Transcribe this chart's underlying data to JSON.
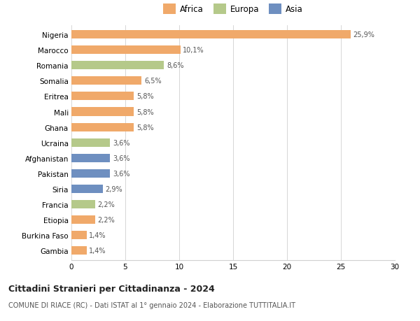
{
  "categories": [
    "Nigeria",
    "Marocco",
    "Romania",
    "Somalia",
    "Eritrea",
    "Mali",
    "Ghana",
    "Ucraina",
    "Afghanistan",
    "Pakistan",
    "Siria",
    "Francia",
    "Etiopia",
    "Burkina Faso",
    "Gambia"
  ],
  "values": [
    25.9,
    10.1,
    8.6,
    6.5,
    5.8,
    5.8,
    5.8,
    3.6,
    3.6,
    3.6,
    2.9,
    2.2,
    2.2,
    1.4,
    1.4
  ],
  "labels": [
    "25,9%",
    "10,1%",
    "8,6%",
    "6,5%",
    "5,8%",
    "5,8%",
    "5,8%",
    "3,6%",
    "3,6%",
    "3,6%",
    "2,9%",
    "2,2%",
    "2,2%",
    "1,4%",
    "1,4%"
  ],
  "continent": [
    "Africa",
    "Africa",
    "Europa",
    "Africa",
    "Africa",
    "Africa",
    "Africa",
    "Europa",
    "Asia",
    "Asia",
    "Asia",
    "Europa",
    "Africa",
    "Africa",
    "Africa"
  ],
  "colors": {
    "Africa": "#F0A96A",
    "Europa": "#B5C98A",
    "Asia": "#6E8FC0"
  },
  "legend_labels": [
    "Africa",
    "Europa",
    "Asia"
  ],
  "legend_colors": [
    "#F0A96A",
    "#B5C98A",
    "#6E8FC0"
  ],
  "title": "Cittadini Stranieri per Cittadinanza - 2024",
  "subtitle": "COMUNE DI RIACE (RC) - Dati ISTAT al 1° gennaio 2024 - Elaborazione TUTTITALIA.IT",
  "xlim": [
    0,
    30
  ],
  "xticks": [
    0,
    5,
    10,
    15,
    20,
    25,
    30
  ],
  "background_color": "#ffffff",
  "grid_color": "#d0d0d0"
}
